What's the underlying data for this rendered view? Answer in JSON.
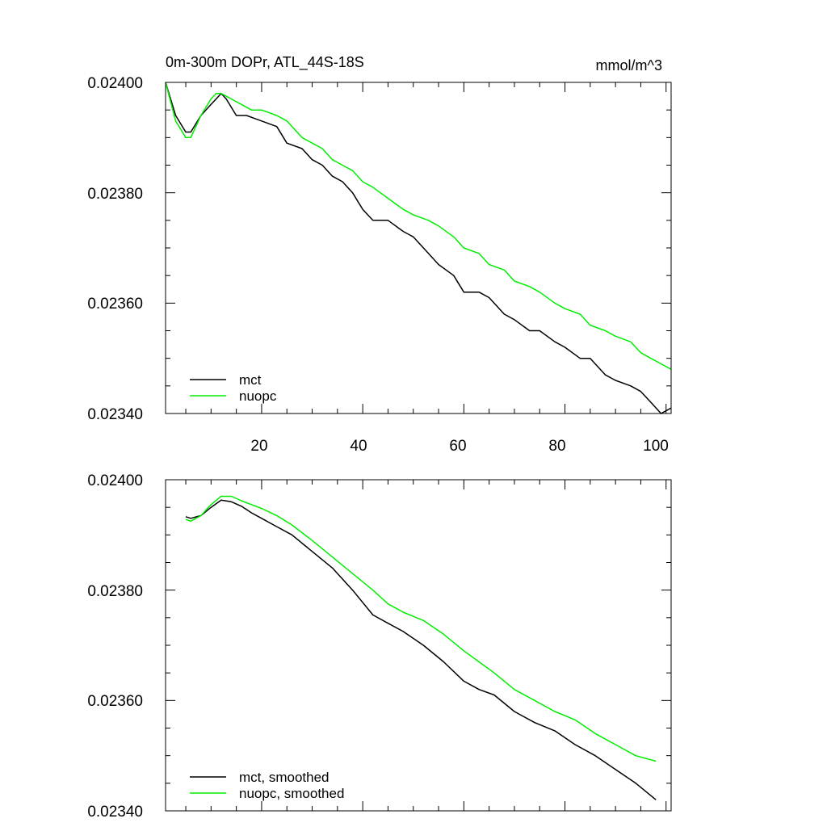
{
  "chart_data": [
    {
      "type": "line",
      "title": "0m-300m DOPr, ATL_44S-18S",
      "units": "mmol/m^3",
      "xlim": [
        1,
        101
      ],
      "ylim": [
        0.0234,
        0.024
      ],
      "xticks": [
        20,
        40,
        60,
        80,
        100
      ],
      "yticks": [
        "0.02340",
        "0.02360",
        "0.02380",
        "0.02400"
      ],
      "legend_position": "bottom-left",
      "colors": {
        "mct": "#000000",
        "nuopc": "#00ee00"
      },
      "series": [
        {
          "name": "mct",
          "x": [
            1,
            3,
            5,
            6,
            8,
            10,
            12,
            13,
            15,
            17,
            20,
            23,
            25,
            28,
            30,
            32,
            34,
            36,
            38,
            40,
            42,
            45,
            48,
            50,
            53,
            55,
            58,
            60,
            63,
            65,
            68,
            70,
            73,
            75,
            78,
            80,
            83,
            85,
            88,
            90,
            93,
            95,
            97,
            99,
            101
          ],
          "values": [
            0.024,
            0.02394,
            0.02391,
            0.02391,
            0.02394,
            0.02396,
            0.02398,
            0.02397,
            0.02394,
            0.02394,
            0.02393,
            0.02392,
            0.02389,
            0.02388,
            0.02386,
            0.02385,
            0.02383,
            0.02382,
            0.0238,
            0.02377,
            0.02375,
            0.02375,
            0.02373,
            0.02372,
            0.02369,
            0.02367,
            0.02365,
            0.02362,
            0.02362,
            0.02361,
            0.02358,
            0.02357,
            0.02355,
            0.02355,
            0.02353,
            0.02352,
            0.0235,
            0.0235,
            0.02347,
            0.02346,
            0.02345,
            0.02344,
            0.02342,
            0.0234,
            0.02341
          ]
        },
        {
          "name": "nuopc",
          "x": [
            1,
            3,
            5,
            6,
            8,
            10,
            11,
            12,
            14,
            16,
            18,
            20,
            23,
            25,
            28,
            30,
            32,
            34,
            36,
            38,
            40,
            42,
            45,
            48,
            50,
            53,
            55,
            58,
            60,
            63,
            65,
            68,
            70,
            73,
            75,
            78,
            80,
            83,
            85,
            88,
            90,
            93,
            95,
            97,
            99,
            101
          ],
          "values": [
            0.024,
            0.02393,
            0.0239,
            0.0239,
            0.02394,
            0.02397,
            0.02398,
            0.02398,
            0.02397,
            0.02396,
            0.02395,
            0.02395,
            0.02394,
            0.02393,
            0.0239,
            0.02389,
            0.02388,
            0.02386,
            0.02385,
            0.02384,
            0.02382,
            0.02381,
            0.02379,
            0.02377,
            0.02376,
            0.02375,
            0.02374,
            0.02372,
            0.0237,
            0.02369,
            0.02367,
            0.02366,
            0.02364,
            0.02363,
            0.02362,
            0.0236,
            0.02359,
            0.02358,
            0.02356,
            0.02355,
            0.02354,
            0.02353,
            0.02351,
            0.0235,
            0.02349,
            0.02348
          ]
        }
      ]
    },
    {
      "type": "line",
      "title": "",
      "xlim": [
        1,
        101
      ],
      "ylim": [
        0.0234,
        0.024
      ],
      "yticks": [
        "0.02340",
        "0.02360",
        "0.02380",
        "0.02400"
      ],
      "legend_position": "bottom-left",
      "colors": {
        "mct": "#000000",
        "nuopc": "#00ee00"
      },
      "series": [
        {
          "name": "mct, smoothed",
          "x": [
            5,
            6,
            8,
            10,
            12,
            14,
            16,
            18,
            20,
            23,
            26,
            30,
            34,
            38,
            42,
            45,
            48,
            52,
            56,
            60,
            63,
            66,
            70,
            74,
            78,
            82,
            86,
            90,
            94,
            98
          ],
          "values": [
            0.023933,
            0.02393,
            0.023935,
            0.02395,
            0.023963,
            0.02396,
            0.023952,
            0.02394,
            0.02393,
            0.023915,
            0.0239,
            0.02387,
            0.02384,
            0.0238,
            0.023755,
            0.02374,
            0.023725,
            0.0237,
            0.02367,
            0.023635,
            0.02362,
            0.02361,
            0.02358,
            0.02356,
            0.023545,
            0.02352,
            0.0235,
            0.023475,
            0.02345,
            0.02342
          ]
        },
        {
          "name": "nuopc, smoothed",
          "x": [
            5,
            6,
            8,
            10,
            12,
            14,
            16,
            18,
            20,
            23,
            26,
            30,
            34,
            38,
            42,
            45,
            48,
            52,
            56,
            60,
            63,
            66,
            70,
            74,
            78,
            82,
            86,
            90,
            94,
            98
          ],
          "values": [
            0.023928,
            0.023925,
            0.023935,
            0.023955,
            0.02397,
            0.02397,
            0.023962,
            0.023955,
            0.023948,
            0.023935,
            0.023918,
            0.02389,
            0.02386,
            0.02383,
            0.0238,
            0.023775,
            0.02376,
            0.023745,
            0.02372,
            0.02369,
            0.02367,
            0.02365,
            0.02362,
            0.0236,
            0.02358,
            0.023565,
            0.02354,
            0.02352,
            0.0235,
            0.02349
          ]
        }
      ]
    }
  ]
}
